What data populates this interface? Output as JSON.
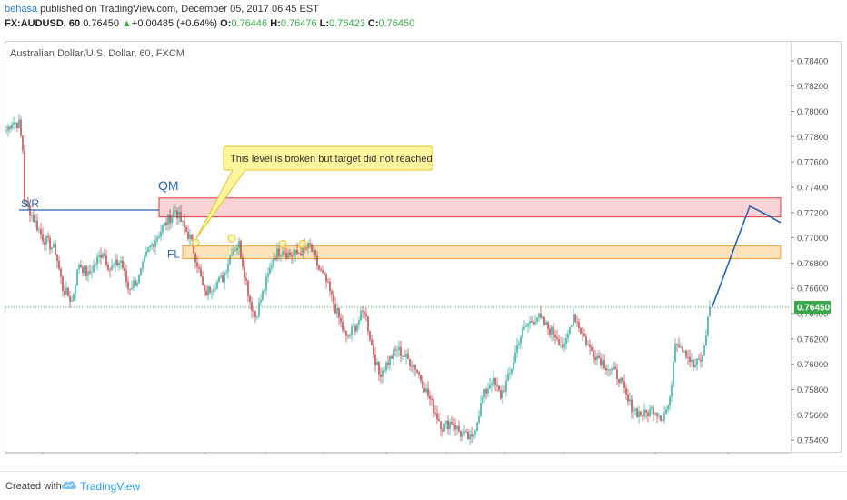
{
  "header": {
    "author": "behasa",
    "published_text": "published on TradingView.com, December 05, 2017 06:45 EST",
    "symbol": "FX:AUDUSD, 60",
    "last": "0.76450",
    "change": "+0.00485 (+0.64%)",
    "open_label": "O:",
    "open": "0.76446",
    "high_label": "H:",
    "high": "0.76476",
    "low_label": "L:",
    "low": "0.76423",
    "close_label": "C:",
    "close": "0.76450"
  },
  "footer": {
    "created_with": "Created with",
    "brand": "TradingView"
  },
  "colors": {
    "candle_up": "#26a69a",
    "candle_down": "#b23a3a",
    "qm_zone_fill": "#f9d4d6",
    "qm_zone_stroke": "#d83b3b",
    "fl_zone_fill": "#fde2b8",
    "fl_zone_stroke": "#f0a340",
    "trend_line": "#2c64b5",
    "callout_fill": "#fff59c",
    "callout_stroke": "#e1c12b",
    "price_tag": "#3aa84a"
  },
  "chart_data": {
    "type": "candlestick",
    "title": "Australian Dollar/U.S. Dollar, 60, FXCM",
    "ylim": [
      0.753,
      0.7855
    ],
    "y_ticks": [
      0.754,
      0.756,
      0.758,
      0.76,
      0.762,
      0.764,
      0.766,
      0.768,
      0.77,
      0.772,
      0.774,
      0.776,
      0.778,
      0.78,
      0.782,
      0.784
    ],
    "x_ticks": [
      {
        "label": "26",
        "bar": 20
      },
      {
        "label": "Nov",
        "bar": 72
      },
      {
        "label": "6",
        "bar": 109
      },
      {
        "label": "12:00",
        "bar": 143
      },
      {
        "label": "13",
        "bar": 174
      },
      {
        "label": "12:00",
        "bar": 209
      },
      {
        "label": "20",
        "bar": 242
      },
      {
        "label": "12:00",
        "bar": 274
      },
      {
        "label": "27",
        "bar": 307
      },
      {
        "label": "Dec",
        "bar": 357
      },
      {
        "label": "6",
        "bar": 397
      }
    ],
    "anchors": [
      [
        0,
        0.7785
      ],
      [
        3,
        0.7792
      ],
      [
        7,
        0.779
      ],
      [
        9,
        0.777
      ],
      [
        10,
        0.773
      ],
      [
        14,
        0.7718
      ],
      [
        20,
        0.77
      ],
      [
        27,
        0.769
      ],
      [
        31,
        0.766
      ],
      [
        36,
        0.765
      ],
      [
        40,
        0.768
      ],
      [
        45,
        0.767
      ],
      [
        53,
        0.769
      ],
      [
        57,
        0.7675
      ],
      [
        63,
        0.7682
      ],
      [
        67,
        0.766
      ],
      [
        73,
        0.7668
      ],
      [
        78,
        0.769
      ],
      [
        86,
        0.7708
      ],
      [
        93,
        0.7722
      ],
      [
        97,
        0.771
      ],
      [
        101,
        0.77
      ],
      [
        105,
        0.768
      ],
      [
        109,
        0.7655
      ],
      [
        114,
        0.7663
      ],
      [
        119,
        0.7668
      ],
      [
        124,
        0.769
      ],
      [
        128,
        0.7695
      ],
      [
        134,
        0.765
      ],
      [
        137,
        0.7638
      ],
      [
        142,
        0.766
      ],
      [
        147,
        0.7685
      ],
      [
        152,
        0.7692
      ],
      [
        154,
        0.7688
      ],
      [
        158,
        0.7686
      ],
      [
        163,
        0.769
      ],
      [
        167,
        0.7693
      ],
      [
        172,
        0.7675
      ],
      [
        176,
        0.7665
      ],
      [
        182,
        0.764
      ],
      [
        187,
        0.762
      ],
      [
        192,
        0.763
      ],
      [
        197,
        0.7643
      ],
      [
        201,
        0.7615
      ],
      [
        205,
        0.7592
      ],
      [
        210,
        0.7602
      ],
      [
        215,
        0.7612
      ],
      [
        220,
        0.7605
      ],
      [
        225,
        0.7598
      ],
      [
        230,
        0.7582
      ],
      [
        235,
        0.7565
      ],
      [
        240,
        0.755
      ],
      [
        245,
        0.7555
      ],
      [
        250,
        0.7545
      ],
      [
        256,
        0.754
      ],
      [
        262,
        0.7573
      ],
      [
        267,
        0.7588
      ],
      [
        272,
        0.7575
      ],
      [
        277,
        0.7592
      ],
      [
        282,
        0.762
      ],
      [
        287,
        0.7632
      ],
      [
        292,
        0.7638
      ],
      [
        297,
        0.763
      ],
      [
        303,
        0.7622
      ],
      [
        307,
        0.7612
      ],
      [
        312,
        0.764
      ],
      [
        316,
        0.7627
      ],
      [
        321,
        0.7612
      ],
      [
        326,
        0.7605
      ],
      [
        332,
        0.7596
      ],
      [
        337,
        0.759
      ],
      [
        342,
        0.757
      ],
      [
        347,
        0.7562
      ],
      [
        351,
        0.756
      ],
      [
        356,
        0.7565
      ],
      [
        361,
        0.7558
      ],
      [
        365,
        0.757
      ],
      [
        368,
        0.762
      ],
      [
        373,
        0.7612
      ],
      [
        378,
        0.7598
      ],
      [
        383,
        0.7605
      ],
      [
        387,
        0.7645
      ]
    ],
    "last_price": 0.7645,
    "zones": [
      {
        "name": "QM",
        "from_bar": 84,
        "to_bar": 426,
        "top": 0.77315,
        "bottom": 0.77165
      },
      {
        "name": "FL",
        "from_bar": 97,
        "to_bar": 426,
        "top": 0.76935,
        "bottom": 0.76835
      }
    ],
    "sr_line": {
      "label": "S/R",
      "from_bar": 7,
      "to_bar": 84,
      "value": 0.7722
    },
    "labels": {
      "qm": "QM",
      "fl": "FL",
      "sr": "S/R"
    },
    "circles": [
      {
        "bar": 104,
        "value": 0.7696
      },
      {
        "bar": 124,
        "value": 0.76995
      },
      {
        "bar": 152,
        "value": 0.7695
      },
      {
        "bar": 163,
        "value": 0.7695
      }
    ],
    "projection": [
      {
        "bar": 388,
        "value": 0.7644
      },
      {
        "bar": 409,
        "value": 0.7725
      },
      {
        "bar": 416,
        "value": 0.772
      },
      {
        "bar": 426,
        "value": 0.7712
      }
    ],
    "annotation": "This level is broken but target did not reached"
  }
}
